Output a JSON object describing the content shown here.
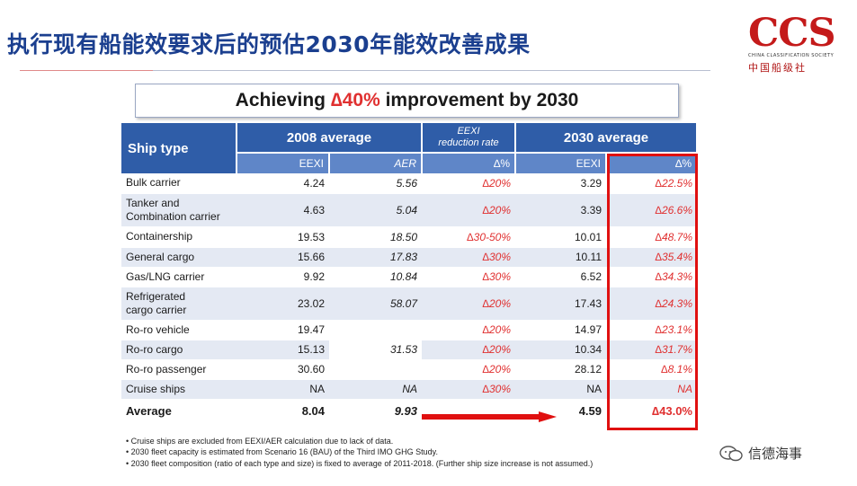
{
  "title": "执行现有船能效要求后的预估2030年能效改善成果",
  "logo": {
    "main": "CCS",
    "sub": "CHINA CLASSIFICATION SOCIETY",
    "cn": "中国船级社"
  },
  "headline": {
    "pre": "Achieving ",
    "highlight": "∆40%",
    "post": " improvement by 2030"
  },
  "table": {
    "headers": {
      "ship_type": "Ship type",
      "avg2008": "2008 average",
      "eexi_rate_line1": "EEXI",
      "eexi_rate_line2": "reduction rate",
      "avg2030": "2030 average"
    },
    "subheaders": {
      "eexi_2008": "EEXI",
      "aer_2008": "AER",
      "delta_rate": "∆%",
      "eexi_2030": "EEXI",
      "delta_2030": "∆%"
    },
    "rows": [
      {
        "name1": "Bulk carrier",
        "name2": "",
        "eexi": "4.24",
        "aer": "5.56",
        "rate": "∆20%",
        "eexi2030": "3.29",
        "delta": "∆22.5%"
      },
      {
        "name1": "Tanker and",
        "name2": "Combination carrier",
        "eexi": "4.63",
        "aer": "5.04",
        "rate": "∆20%",
        "eexi2030": "3.39",
        "delta": "∆26.6%"
      },
      {
        "name1": "Containership",
        "name2": "",
        "eexi": "19.53",
        "aer": "18.50",
        "rate": "∆30-50%",
        "eexi2030": "10.01",
        "delta": "∆48.7%"
      },
      {
        "name1": "General cargo",
        "name2": "",
        "eexi": "15.66",
        "aer": "17.83",
        "rate": "∆30%",
        "eexi2030": "10.11",
        "delta": "∆35.4%"
      },
      {
        "name1": "Gas/LNG carrier",
        "name2": "",
        "eexi": "9.92",
        "aer": "10.84",
        "rate": "∆30%",
        "eexi2030": "6.52",
        "delta": "∆34.3%"
      },
      {
        "name1": "Refrigerated",
        "name2": "cargo carrier",
        "eexi": "23.02",
        "aer": "58.07",
        "rate": "∆20%",
        "eexi2030": "17.43",
        "delta": "∆24.3%"
      },
      {
        "name1": "Ro-ro vehicle",
        "name2": "",
        "eexi": "19.47",
        "aer": "",
        "rate": "∆20%",
        "eexi2030": "14.97",
        "delta": "∆23.1%"
      },
      {
        "name1": "Ro-ro cargo",
        "name2": "",
        "eexi": "15.13",
        "aer": "31.53",
        "rate": "∆20%",
        "eexi2030": "10.34",
        "delta": "∆31.7%"
      },
      {
        "name1": "Ro-ro passenger",
        "name2": "",
        "eexi": "30.60",
        "aer": "",
        "rate": "∆20%",
        "eexi2030": "28.12",
        "delta": "∆8.1%"
      },
      {
        "name1": "Cruise ships",
        "name2": "",
        "eexi": "NA",
        "aer": "NA",
        "rate": "∆30%",
        "eexi2030": "NA",
        "delta": "NA"
      }
    ],
    "average": {
      "name": "Average",
      "eexi": "8.04",
      "aer": "9.93",
      "eexi2030": "4.59",
      "delta": "∆43.0%"
    }
  },
  "notes": [
    "Cruise ships are excluded from EEXI/AER calculation due to lack of data.",
    "2030 fleet capacity is estimated from Scenario 16 (BAU) of the Third IMO GHG Study.",
    "2030 fleet composition (ratio of each type and size) is fixed to average of 2011-2018. (Further ship size increase is not assumed.)"
  ],
  "watermark": "信德海事",
  "colors": {
    "header_blue": "#2f5da8",
    "subheader_blue": "#5f86c8",
    "row_alt": "#e4e9f3",
    "accent_red": "#e03030",
    "title_blue": "#1b3f8f"
  }
}
